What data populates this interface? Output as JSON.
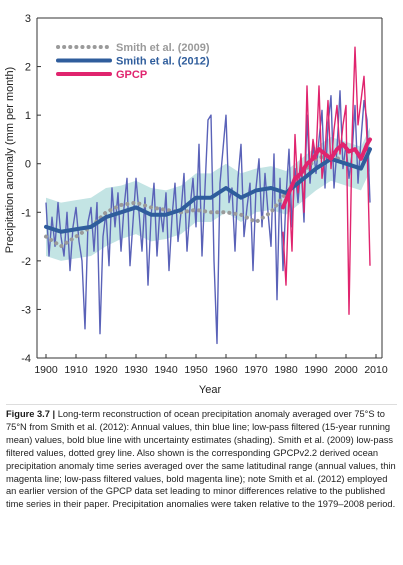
{
  "chart_data": {
    "type": "line",
    "ylabel": "Precipitation anomaly (mm per month)",
    "xlabel": "Year",
    "xlim": [
      1897,
      2012
    ],
    "ylim": [
      -4,
      3
    ],
    "xticks": [
      1900,
      1910,
      1920,
      1930,
      1940,
      1950,
      1960,
      1970,
      1980,
      1990,
      2000,
      2010
    ],
    "yticks": [
      -4,
      -3,
      -2,
      -1,
      0,
      1,
      2,
      3
    ],
    "legend": "top-left",
    "uncertainty": {
      "color": "#c3e4e4",
      "x": [
        1900,
        1905,
        1910,
        1915,
        1920,
        1925,
        1930,
        1935,
        1940,
        1945,
        1950,
        1955,
        1960,
        1965,
        1970,
        1975,
        1980,
        1985,
        1990,
        1995,
        2000,
        2005,
        2008
      ],
      "upper": [
        -0.7,
        -0.8,
        -0.75,
        -0.7,
        -0.5,
        -0.45,
        -0.35,
        -0.5,
        -0.55,
        -0.45,
        -0.2,
        -0.2,
        0.0,
        -0.2,
        -0.1,
        -0.05,
        -0.15,
        0.1,
        0.35,
        0.55,
        0.45,
        0.35,
        0.75
      ],
      "lower": [
        -1.9,
        -2.0,
        -1.95,
        -1.9,
        -1.7,
        -1.55,
        -1.45,
        -1.6,
        -1.55,
        -1.45,
        -1.2,
        -1.2,
        -1.0,
        -1.2,
        -1.0,
        -0.95,
        -1.05,
        -0.8,
        -0.55,
        -0.35,
        -0.45,
        -0.55,
        -0.15
      ]
    },
    "series": [
      {
        "name": "Smith et al. (2009)",
        "color": "#9a9a9a",
        "style": "dotted",
        "legend": true,
        "x": [
          1900,
          1905,
          1910,
          1915,
          1920,
          1925,
          1930,
          1935,
          1940,
          1945,
          1950,
          1955,
          1960,
          1965,
          1970,
          1975,
          1980,
          1985,
          1990,
          1995,
          2000,
          2005
        ],
        "values": [
          -1.5,
          -1.7,
          -1.5,
          -1.3,
          -1.0,
          -0.85,
          -0.8,
          -0.9,
          -0.95,
          -1.0,
          -0.95,
          -1.0,
          -1.0,
          -1.05,
          -1.2,
          -1.0,
          -0.6,
          -0.2,
          0.1,
          0.2,
          0.0,
          -0.1
        ]
      },
      {
        "name": "Smith et al. (2012)",
        "color": "#2f5d9c",
        "style": "bold",
        "legend": true,
        "x": [
          1900,
          1905,
          1910,
          1915,
          1920,
          1925,
          1930,
          1935,
          1940,
          1945,
          1950,
          1955,
          1960,
          1965,
          1970,
          1975,
          1980,
          1985,
          1990,
          1995,
          2000,
          2005,
          2008
        ],
        "values": [
          -1.3,
          -1.4,
          -1.35,
          -1.3,
          -1.1,
          -1.0,
          -0.9,
          -1.05,
          -1.05,
          -0.95,
          -0.7,
          -0.7,
          -0.5,
          -0.7,
          -0.55,
          -0.5,
          -0.6,
          -0.35,
          -0.1,
          0.1,
          0.0,
          -0.1,
          0.3
        ]
      },
      {
        "color": "#5a62b8",
        "style": "thin",
        "legend": false,
        "x": [
          1900,
          1901,
          1902,
          1903,
          1904,
          1905,
          1906,
          1907,
          1908,
          1909,
          1910,
          1911,
          1912,
          1913,
          1914,
          1915,
          1916,
          1917,
          1918,
          1919,
          1920,
          1921,
          1922,
          1923,
          1924,
          1925,
          1926,
          1927,
          1928,
          1929,
          1930,
          1931,
          1932,
          1933,
          1934,
          1935,
          1936,
          1937,
          1938,
          1939,
          1940,
          1941,
          1942,
          1943,
          1944,
          1945,
          1946,
          1947,
          1948,
          1949,
          1950,
          1951,
          1952,
          1953,
          1954,
          1955,
          1956,
          1957,
          1958,
          1959,
          1960,
          1961,
          1962,
          1963,
          1964,
          1965,
          1966,
          1967,
          1968,
          1969,
          1970,
          1971,
          1972,
          1973,
          1974,
          1975,
          1976,
          1977,
          1978,
          1979,
          1980,
          1981,
          1982,
          1983,
          1984,
          1985,
          1986,
          1987,
          1988,
          1989,
          1990,
          1991,
          1992,
          1993,
          1994,
          1995,
          1996,
          1997,
          1998,
          1999,
          2000,
          2001,
          2002,
          2003,
          2004,
          2005,
          2006,
          2007,
          2008
        ],
        "values": [
          -0.8,
          -1.9,
          -1.1,
          -1.7,
          -0.8,
          -1.5,
          -1.9,
          -1.0,
          -2.2,
          -1.3,
          -0.9,
          -1.6,
          -2.0,
          -3.4,
          -1.2,
          -0.9,
          -1.8,
          -0.8,
          -3.5,
          -1.5,
          -1.0,
          -2.1,
          -0.5,
          -1.3,
          -0.6,
          -1.8,
          -0.9,
          -0.3,
          -2.1,
          -1.2,
          -0.3,
          -1.0,
          -1.8,
          -0.7,
          -2.5,
          -1.1,
          -0.4,
          -1.9,
          -0.9,
          -1.4,
          -0.6,
          -2.2,
          -1.1,
          -0.4,
          -1.6,
          -1.0,
          -0.2,
          -1.8,
          -0.9,
          -0.3,
          -1.3,
          0.4,
          -1.9,
          -0.5,
          0.9,
          1.0,
          -2.0,
          -3.7,
          -0.4,
          0.3,
          1.0,
          -0.8,
          -0.5,
          -1.8,
          -0.3,
          0.4,
          -1.5,
          -0.9,
          -0.4,
          -2.2,
          -0.5,
          0.1,
          -1.3,
          -0.2,
          -1.0,
          -1.7,
          0.2,
          -2.8,
          -0.3,
          -2.2,
          -0.7,
          0.3,
          -1.3,
          -0.1,
          -0.8,
          0.0,
          -1.2,
          1.0,
          -0.4,
          0.4,
          -0.2,
          0.5,
          1.1,
          -0.5,
          0.8,
          1.4,
          -0.5,
          0.3,
          1.5,
          -0.1,
          0.4,
          -0.3,
          0.2,
          1.2,
          -0.4,
          0.5,
          1.3,
          0.9,
          -0.8
        ]
      },
      {
        "name": "GPCP",
        "color": "#e0246e",
        "style": "bold",
        "legend": true,
        "x": [
          1979,
          1981,
          1983,
          1985,
          1987,
          1989,
          1991,
          1993,
          1995,
          1997,
          1999,
          2001,
          2003,
          2005,
          2007,
          2008
        ],
        "values": [
          -0.9,
          -0.6,
          -0.3,
          -0.2,
          0.0,
          0.1,
          0.3,
          0.2,
          0.1,
          0.3,
          0.4,
          0.25,
          0.3,
          0.1,
          0.4,
          0.5
        ]
      },
      {
        "color": "#e0246e",
        "style": "thin",
        "legend": false,
        "x": [
          1979,
          1980,
          1981,
          1982,
          1983,
          1984,
          1985,
          1986,
          1987,
          1988,
          1989,
          1990,
          1991,
          1992,
          1993,
          1994,
          1995,
          1996,
          1997,
          1998,
          1999,
          2000,
          2001,
          2002,
          2003,
          2004,
          2005,
          2006,
          2007,
          2008
        ],
        "values": [
          -1.4,
          -2.5,
          -0.5,
          -1.8,
          0.6,
          -0.6,
          0.2,
          -1.0,
          1.6,
          -0.2,
          0.5,
          0.1,
          1.6,
          -0.3,
          0.2,
          1.3,
          -0.1,
          0.7,
          1.2,
          0.2,
          0.8,
          1.2,
          -3.1,
          0.5,
          2.4,
          0.8,
          1.3,
          1.8,
          0.5,
          -2.1
        ]
      }
    ]
  },
  "caption": {
    "label": "Figure 3.7 |",
    "text": "Long-term reconstruction of ocean precipitation anomaly averaged over 75°S to 75°N from Smith et al. (2012): Annual values, thin blue line; low-pass filtered (15-year running mean) values, bold blue line with uncertainty estimates (shading). Smith et al. (2009) low-pass filtered values, dotted grey line. Also shown is the corresponding GPCPv2.2 derived ocean precipitation anomaly time series averaged over the same latitudinal range (annual values, thin magenta line; low-pass filtered values, bold magenta line); note Smith et al. (2012) employed an earlier version of the GPCP data set leading to minor differences relative to the published time series in their paper. Precipitation anomalies were taken relative to the 1979–2008 period."
  }
}
